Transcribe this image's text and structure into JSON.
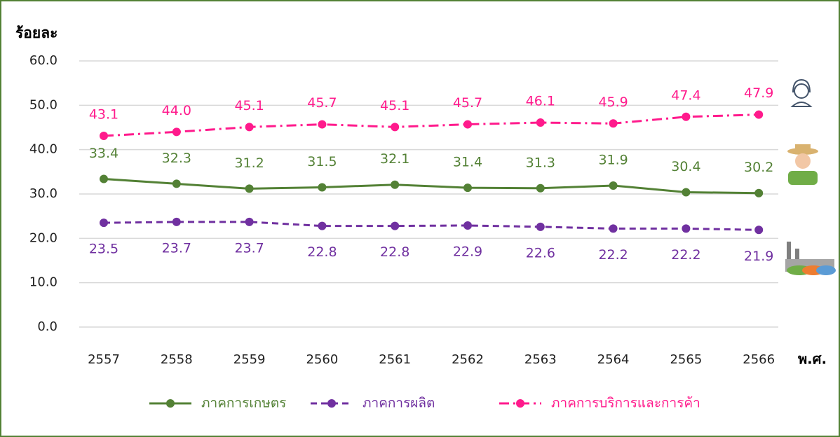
{
  "chart_data": {
    "type": "line",
    "y_axis_label": "ร้อยละ",
    "x_axis_label": "พ.ศ.",
    "categories": [
      "2557",
      "2558",
      "2559",
      "2560",
      "2561",
      "2562",
      "2563",
      "2564",
      "2565",
      "2566"
    ],
    "series": [
      {
        "name": "ภาคการเกษตร",
        "color": "#538135",
        "line_style": "solid",
        "label_position": "above",
        "values": [
          33.4,
          32.3,
          31.2,
          31.5,
          32.1,
          31.4,
          31.3,
          31.9,
          30.4,
          30.2
        ]
      },
      {
        "name": "ภาคการผลิต",
        "color": "#7030a0",
        "line_style": "dashed",
        "label_position": "below",
        "values": [
          23.5,
          23.7,
          23.7,
          22.8,
          22.8,
          22.9,
          22.6,
          22.2,
          22.2,
          21.9
        ]
      },
      {
        "name": "ภาคการบริการและการค้า",
        "color": "#ff1a8c",
        "line_style": "dashdot",
        "label_position": "above",
        "values": [
          43.1,
          44.0,
          45.1,
          45.7,
          45.1,
          45.7,
          46.1,
          45.9,
          47.4,
          47.9
        ],
        "value_labels": [
          "43.1",
          "44.0",
          "45.1",
          "45.7",
          "45.1",
          "45.7",
          "46.1",
          "45.9",
          "47.4",
          "47.9"
        ]
      }
    ],
    "ylim": [
      0,
      60
    ],
    "yticks": [
      {
        "value": 0,
        "label": "0.0"
      },
      {
        "value": 10,
        "label": "10.0"
      },
      {
        "value": 20,
        "label": "20.0"
      },
      {
        "value": 30,
        "label": "30.0"
      },
      {
        "value": 40,
        "label": "40.0"
      },
      {
        "value": 50,
        "label": "50.0"
      },
      {
        "value": 60,
        "label": "60.0"
      }
    ],
    "grid": true
  }
}
